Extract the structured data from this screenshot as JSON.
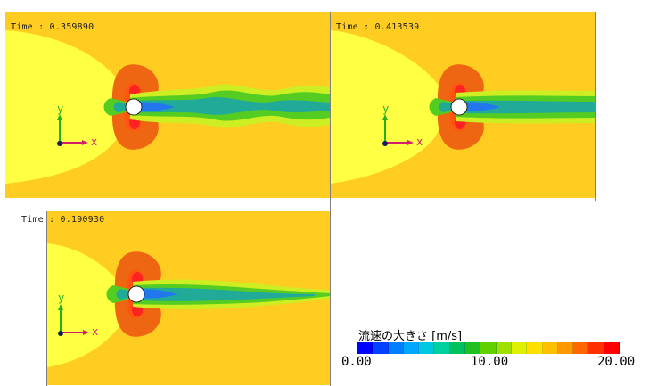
{
  "panels": [
    {
      "id": "panel-top-left",
      "time_label": "Time : 0.359890"
    },
    {
      "id": "panel-top-right",
      "time_label": "Time : 0.413539"
    },
    {
      "id": "panel-bottom-left",
      "time_label": "Time : 0.190930"
    }
  ],
  "axis_labels": {
    "x": "x",
    "y": "y"
  },
  "legend": {
    "title": "流速の大きさ [m/s]",
    "min_label": "0.00",
    "mid_label": "10.00",
    "max_label": "20.00",
    "colors": [
      "#0000ff",
      "#0040ff",
      "#0080ff",
      "#00a8ff",
      "#00c8e0",
      "#00d0a0",
      "#00c060",
      "#20c020",
      "#60d000",
      "#a0e000",
      "#e0f000",
      "#ffe000",
      "#ffc000",
      "#ff9800",
      "#ff6800",
      "#ff3000",
      "#ff0000"
    ]
  },
  "colors": {
    "background": "#ffcc22",
    "near_field": "#ffff44",
    "wake_outer": "#ccee22",
    "wake_mid": "#55cc22",
    "wake_inner": "#22aa99",
    "wake_core": "#2277ee",
    "stagnation": "#ee6611",
    "side_peak": "#ff2222"
  }
}
